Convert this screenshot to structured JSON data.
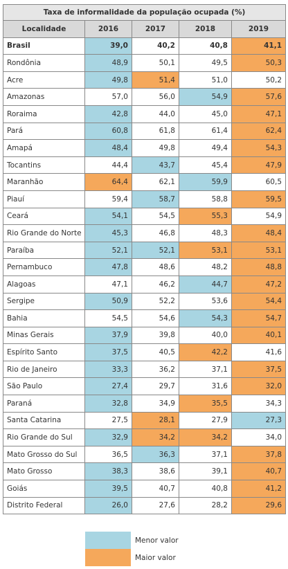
{
  "table": {
    "title": "Taxa de informalidade da população ocupada (%)",
    "columns": [
      "Localidade",
      "2016",
      "2017",
      "2018",
      "2019"
    ],
    "rows": [
      [
        "Brasil",
        "39,0",
        "40,2",
        "40,8",
        "41,1"
      ],
      [
        "Rondônia",
        "48,9",
        "50,1",
        "49,5",
        "50,3"
      ],
      [
        "Acre",
        "49,8",
        "51,4",
        "51,0",
        "50,2"
      ],
      [
        "Amazonas",
        "57,0",
        "56,0",
        "54,9",
        "57,6"
      ],
      [
        "Roraima",
        "42,8",
        "44,0",
        "45,0",
        "47,1"
      ],
      [
        "Pará",
        "60,8",
        "61,8",
        "61,4",
        "62,4"
      ],
      [
        "Amapá",
        "48,4",
        "49,8",
        "49,4",
        "54,3"
      ],
      [
        "Tocantins",
        "44,4",
        "43,7",
        "45,4",
        "47,9"
      ],
      [
        "Maranhão",
        "64,4",
        "62,1",
        "59,9",
        "60,5"
      ],
      [
        "Piauí",
        "59,4",
        "58,7",
        "58,8",
        "59,5"
      ],
      [
        "Ceará",
        "54,1",
        "54,5",
        "55,3",
        "54,9"
      ],
      [
        "Rio Grande do Norte",
        "45,3",
        "46,8",
        "48,3",
        "48,4"
      ],
      [
        "Paraíba",
        "52,1",
        "52,1",
        "53,1",
        "53,1"
      ],
      [
        "Pernambuco",
        "47,8",
        "48,6",
        "48,2",
        "48,8"
      ],
      [
        "Alagoas",
        "47,1",
        "46,2",
        "44,7",
        "47,2"
      ],
      [
        "Sergipe",
        "50,9",
        "52,2",
        "53,6",
        "54,4"
      ],
      [
        "Bahia",
        "54,5",
        "54,6",
        "54,3",
        "54,7"
      ],
      [
        "Minas Gerais",
        "37,9",
        "39,8",
        "40,0",
        "40,1"
      ],
      [
        "Espírito Santo",
        "37,5",
        "40,5",
        "42,2",
        "41,6"
      ],
      [
        "Rio de Janeiro",
        "33,3",
        "36,2",
        "37,1",
        "37,5"
      ],
      [
        "São Paulo",
        "27,4",
        "29,7",
        "31,6",
        "32,0"
      ],
      [
        "Paraná",
        "32,8",
        "34,9",
        "35,5",
        "34,3"
      ],
      [
        "Santa Catarina",
        "27,5",
        "28,1",
        "27,9",
        "27,3"
      ],
      [
        "Rio Grande do Sul",
        "32,9",
        "34,2",
        "34,2",
        "34,0"
      ],
      [
        "Mato Grosso do Sul",
        "36,5",
        "36,3",
        "37,1",
        "37,8"
      ],
      [
        "Mato Grosso",
        "38,3",
        "38,6",
        "39,1",
        "40,7"
      ],
      [
        "Goiás",
        "39,5",
        "40,7",
        "40,8",
        "41,2"
      ],
      [
        "Distrito Federal",
        "26,0",
        "27,6",
        "28,2",
        "29,6"
      ]
    ]
  },
  "legend": {
    "min": "Menor valor",
    "max": "Maior valor"
  }
}
